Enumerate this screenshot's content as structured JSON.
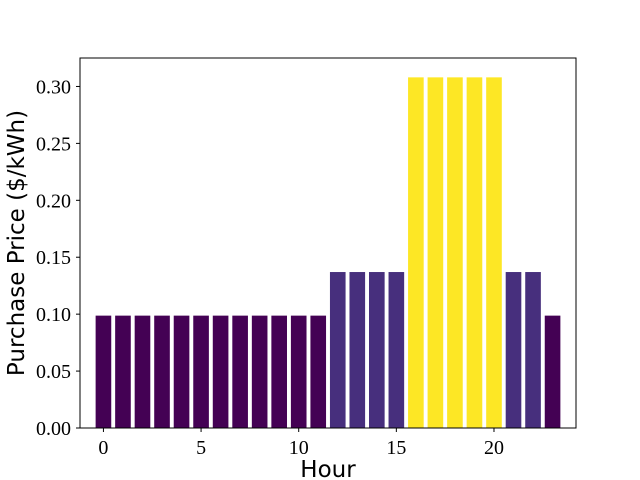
{
  "chart_data": {
    "type": "bar",
    "title": "",
    "xlabel": "Hour",
    "ylabel": "Purchase Price ($/kWh)",
    "x": [
      0,
      1,
      2,
      3,
      4,
      5,
      6,
      7,
      8,
      9,
      10,
      11,
      12,
      13,
      14,
      15,
      16,
      17,
      18,
      19,
      20,
      21,
      22,
      23
    ],
    "values": [
      0.0987,
      0.0987,
      0.0987,
      0.0987,
      0.0987,
      0.0987,
      0.0987,
      0.0987,
      0.0987,
      0.0987,
      0.0987,
      0.0987,
      0.137,
      0.137,
      0.137,
      0.137,
      0.308,
      0.308,
      0.308,
      0.308,
      0.308,
      0.137,
      0.137,
      0.0987
    ],
    "xlim": [
      -1.2,
      24.2
    ],
    "ylim": [
      0,
      0.325
    ],
    "xticks": [
      0,
      5,
      10,
      15,
      20
    ],
    "xtick_labels": [
      "0",
      "5",
      "10",
      "15",
      "20"
    ],
    "yticks": [
      0,
      0.05,
      0.1,
      0.15,
      0.2,
      0.25,
      0.3
    ],
    "ytick_labels": [
      "0.00",
      "0.05",
      "0.10",
      "0.15",
      "0.20",
      "0.25",
      "0.30"
    ],
    "bar_width": 0.8,
    "colormap": "viridis",
    "bar_colors": {
      "low": "#440154",
      "mid": "#472f7d",
      "high": "#fde725"
    },
    "grid": false,
    "legend": "none"
  }
}
